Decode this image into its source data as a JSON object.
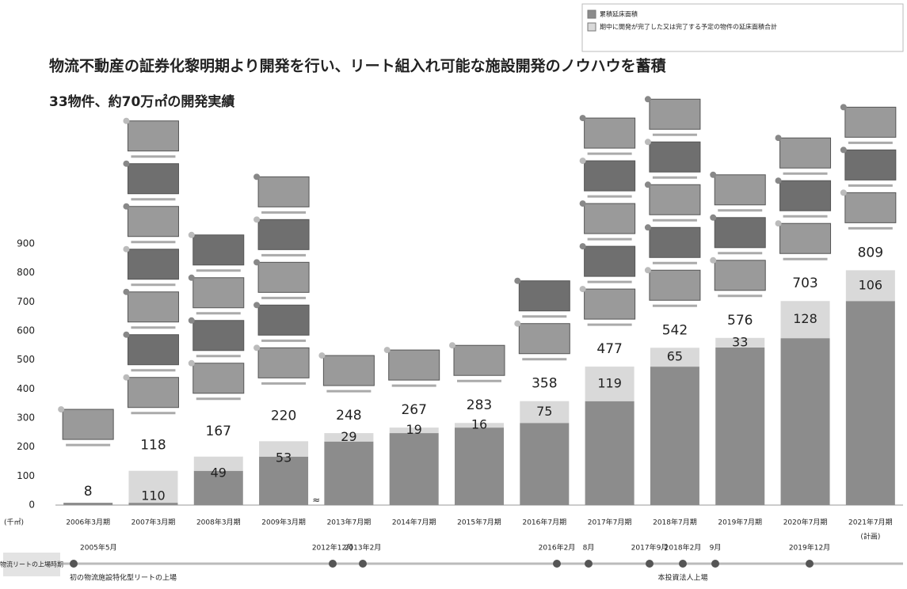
{
  "chart_data": {
    "type": "bar",
    "title": "物流不動産の証券化黎明期より開発を行い、リート組入れ可能な施設開発のノウハウを蓄積",
    "subtitle": "33物件、約70万㎡の開発実績",
    "y_unit": "(千㎡)",
    "categories": [
      "2006年3月期",
      "2007年3月期",
      "2008年3月期",
      "2009年3月期",
      "2013年7月期",
      "2014年7月期",
      "2015年7月期",
      "2016年7月期",
      "2017年7月期",
      "2018年7月期",
      "2019年7月期",
      "2020年7月期",
      "2021年7月期"
    ],
    "plan_note": "(計画)",
    "series": [
      {
        "name": "累積延床面積",
        "color": "#8c8c8c",
        "values": [
          8,
          8,
          118,
          167,
          219,
          248,
          267,
          283,
          358,
          477,
          543,
          575,
          703
        ]
      },
      {
        "name": "期中に開発が完了した又は完了する予定の物件の延床面積合計",
        "color": "#d9d9d9",
        "values": [
          null,
          110,
          49,
          53,
          29,
          19,
          16,
          75,
          119,
          65,
          33,
          128,
          106
        ]
      }
    ],
    "totals": [
      8,
      118,
      167,
      220,
      248,
      267,
      283,
      358,
      477,
      542,
      576,
      703,
      809
    ],
    "ylim": [
      0,
      900
    ],
    "yticks": [
      0,
      100,
      200,
      300,
      400,
      500,
      600,
      700,
      800,
      900
    ],
    "grid": false
  },
  "timeline": {
    "label": "物流リートの上場時期",
    "events": [
      {
        "date": "2005年5月",
        "note": "初の物流施設特化型リートの上場"
      },
      {
        "date": "2012年12月"
      },
      {
        "date": "2013年2月"
      },
      {
        "date": "2016年2月"
      },
      {
        "date": "8月"
      },
      {
        "date": "2017年9月"
      },
      {
        "date": "2018年2月",
        "note": "本投資法人上場"
      },
      {
        "date": "9月"
      },
      {
        "date": "2019年12月"
      }
    ]
  }
}
